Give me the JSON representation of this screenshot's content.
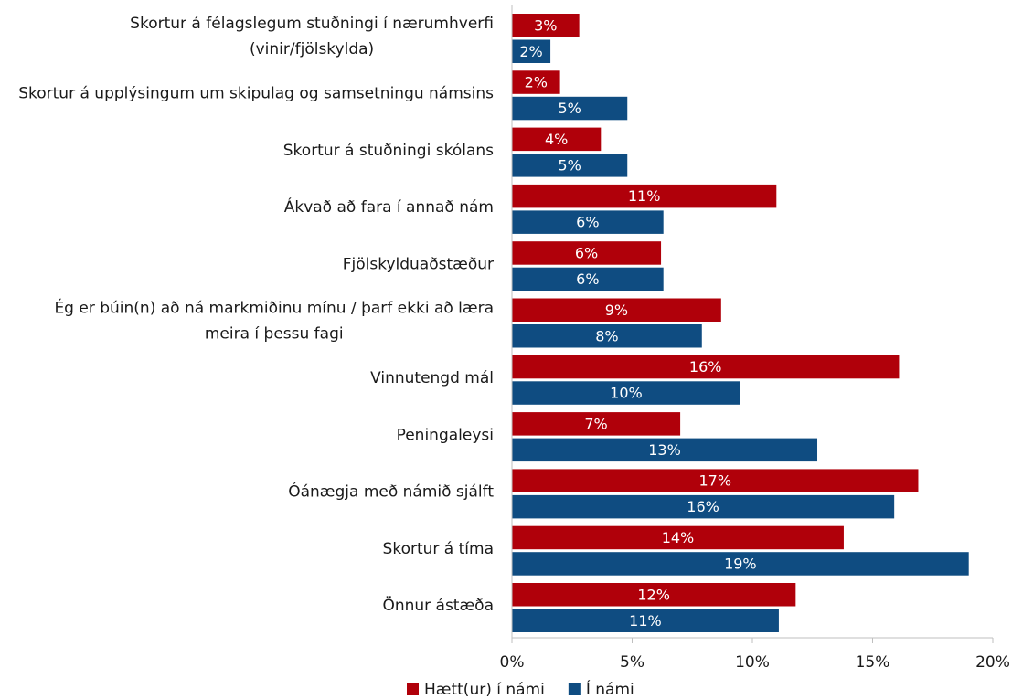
{
  "colors": {
    "series_0": "#b0000a",
    "series_1": "#0f4c81",
    "axis": "#bfbfbf"
  },
  "chart_data": {
    "type": "bar",
    "orientation": "horizontal",
    "title": "",
    "xlabel": "",
    "ylabel": "",
    "xlim": [
      0,
      20
    ],
    "grid": false,
    "legend_position": "bottom",
    "categories": [
      [
        "Skortur á félagslegum stuðningi í nærumhverfi",
        "(vinir/fjölskylda)"
      ],
      [
        "Skortur á upplýsingum um skipulag og samsetningu námsins"
      ],
      [
        "Skortur á stuðningi skólans"
      ],
      [
        "Ákvað að fara í annað nám"
      ],
      [
        "Fjölskylduaðstæður"
      ],
      [
        "Ég er búin(n) að ná markmiðinu mínu / þarf ekki að læra",
        "meira í þessu fagi"
      ],
      [
        "Vinnutengd mál"
      ],
      [
        "Peningaleysi"
      ],
      [
        "Óánægja með námið sjálft"
      ],
      [
        "Skortur á tíma"
      ],
      [
        "Önnur ástæða"
      ]
    ],
    "series": [
      {
        "name": "Hætt(ur) í námi",
        "values": [
          2.8,
          2.0,
          3.7,
          11.0,
          6.2,
          8.7,
          16.1,
          7.0,
          16.9,
          13.8,
          11.8
        ],
        "labels": [
          "3%",
          "2%",
          "4%",
          "11%",
          "6%",
          "9%",
          "16%",
          "7%",
          "17%",
          "14%",
          "12%"
        ]
      },
      {
        "name": "Í námi",
        "values": [
          1.6,
          4.8,
          4.8,
          6.3,
          6.3,
          7.9,
          9.5,
          12.7,
          15.9,
          19.0,
          11.1
        ],
        "labels": [
          "2%",
          "5%",
          "5%",
          "6%",
          "6%",
          "8%",
          "10%",
          "13%",
          "16%",
          "19%",
          "11%"
        ]
      }
    ],
    "ticks": [
      {
        "value": 0,
        "label": "0%"
      },
      {
        "value": 5,
        "label": "5%"
      },
      {
        "value": 10,
        "label": "10%"
      },
      {
        "value": 15,
        "label": "15%"
      },
      {
        "value": 20,
        "label": "20%"
      }
    ]
  }
}
